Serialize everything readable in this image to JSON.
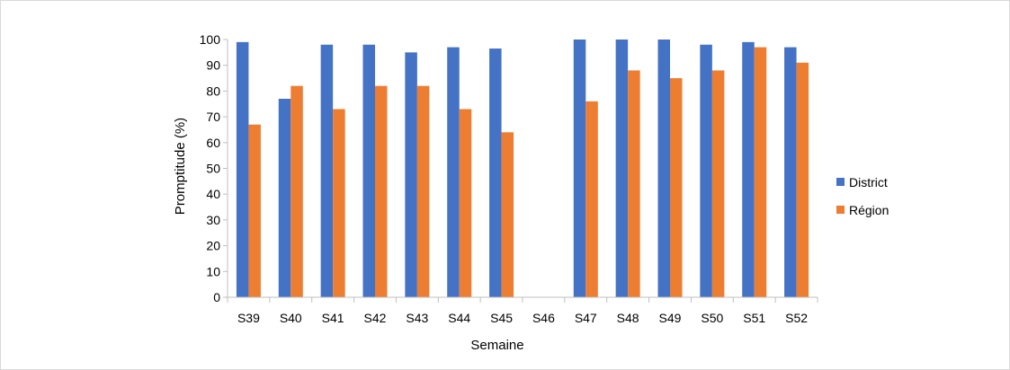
{
  "chart_data": {
    "type": "bar",
    "title": "",
    "xlabel": "Semaine",
    "ylabel": "Promptitude (%)",
    "ylim": [
      0,
      100
    ],
    "ytick_step": 10,
    "yticks": [
      "0",
      "10",
      "20",
      "30",
      "40",
      "50",
      "60",
      "70",
      "80",
      "90",
      "100"
    ],
    "categories": [
      "S39",
      "S40",
      "S41",
      "S42",
      "S43",
      "S44",
      "S45",
      "S46",
      "S47",
      "S48",
      "S49",
      "S50",
      "S51",
      "S52"
    ],
    "series": [
      {
        "name": "District",
        "color": "#4472C4",
        "values": [
          99,
          77,
          98,
          98,
          95,
          97,
          96.5,
          null,
          100,
          100,
          100,
          98,
          99,
          97
        ]
      },
      {
        "name": "Région",
        "color": "#ED7D31",
        "values": [
          67,
          82,
          73,
          82,
          82,
          73,
          64,
          null,
          76,
          88,
          85,
          88,
          97,
          91
        ]
      }
    ],
    "grid": false,
    "legend_position": "right"
  }
}
